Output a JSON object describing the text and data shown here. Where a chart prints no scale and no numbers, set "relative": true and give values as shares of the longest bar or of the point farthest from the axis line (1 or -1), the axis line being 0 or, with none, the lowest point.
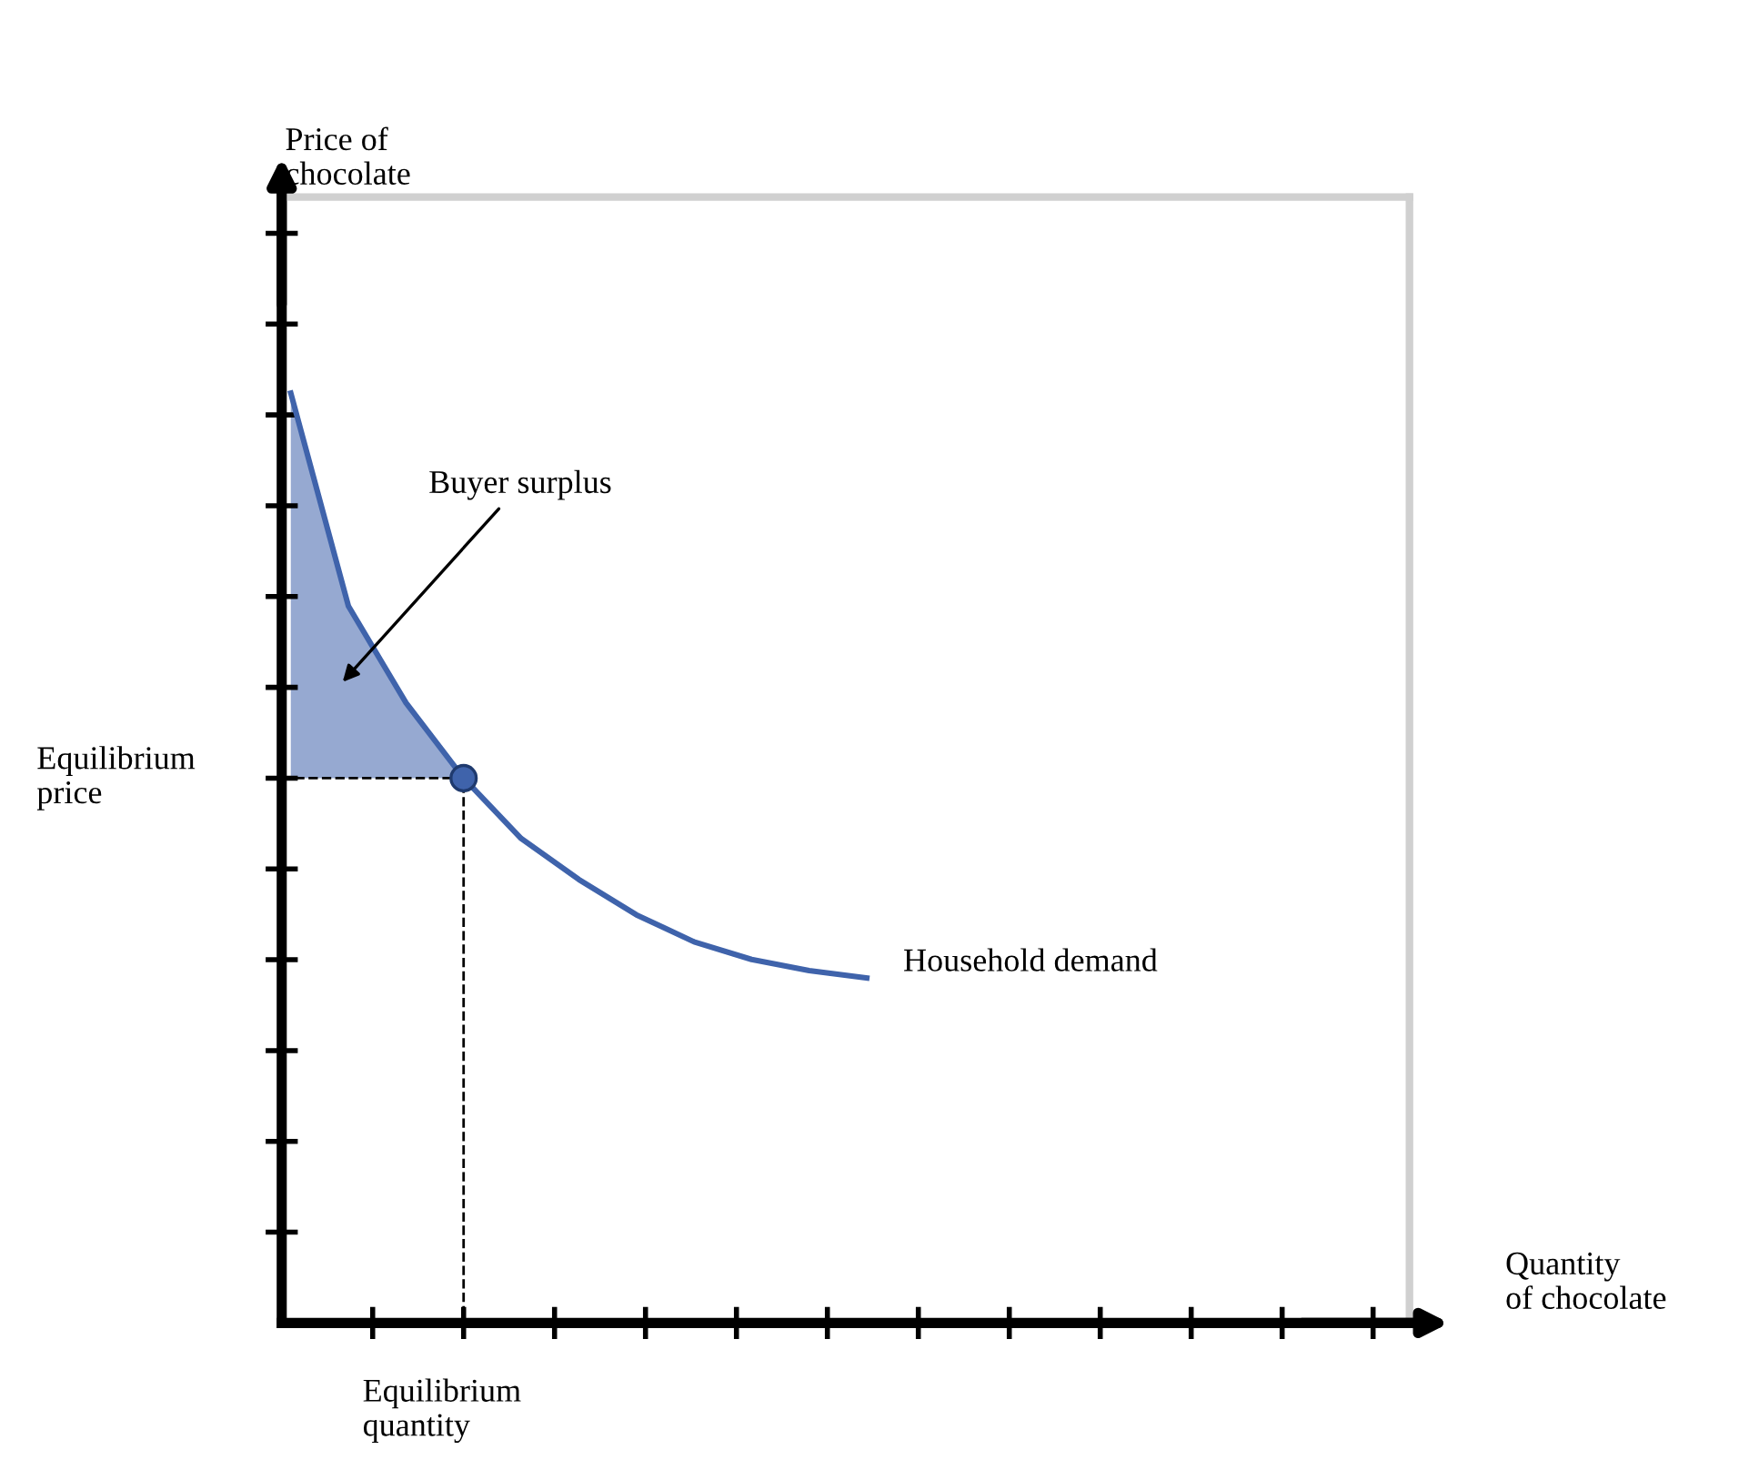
{
  "chart_data": {
    "type": "line",
    "relative": true,
    "categories": [
      null,
      null,
      null,
      null,
      null,
      null,
      null,
      null,
      null,
      null,
      null
    ],
    "annotations": [
      "Buyer surplus",
      "Equilibrium\nprice",
      "Equilibrium\nquantity",
      "Price of\nchocolate",
      "Quantity\nof chocolate"
    ],
    "series": [
      {
        "name": "Household demand",
        "color": "#3f63ab",
        "values": [
          1,
          0.771,
          0.667,
          0.586,
          0.521,
          0.477,
          0.439,
          0.41,
          0.391,
          0.379,
          0.371
        ],
        "lower": [
          0.586,
          0.586,
          0.586,
          0.586,
          null,
          null,
          null,
          null,
          null,
          null,
          null
        ],
        "upper": [
          1,
          0.771,
          0.667,
          0.586,
          null,
          null,
          null,
          null,
          null,
          null,
          null
        ]
      }
    ],
    "ref_lines": [
      {
        "axis": "y",
        "value": 0.586,
        "line_style": "dashed",
        "color": "#000000"
      }
    ]
  }
}
